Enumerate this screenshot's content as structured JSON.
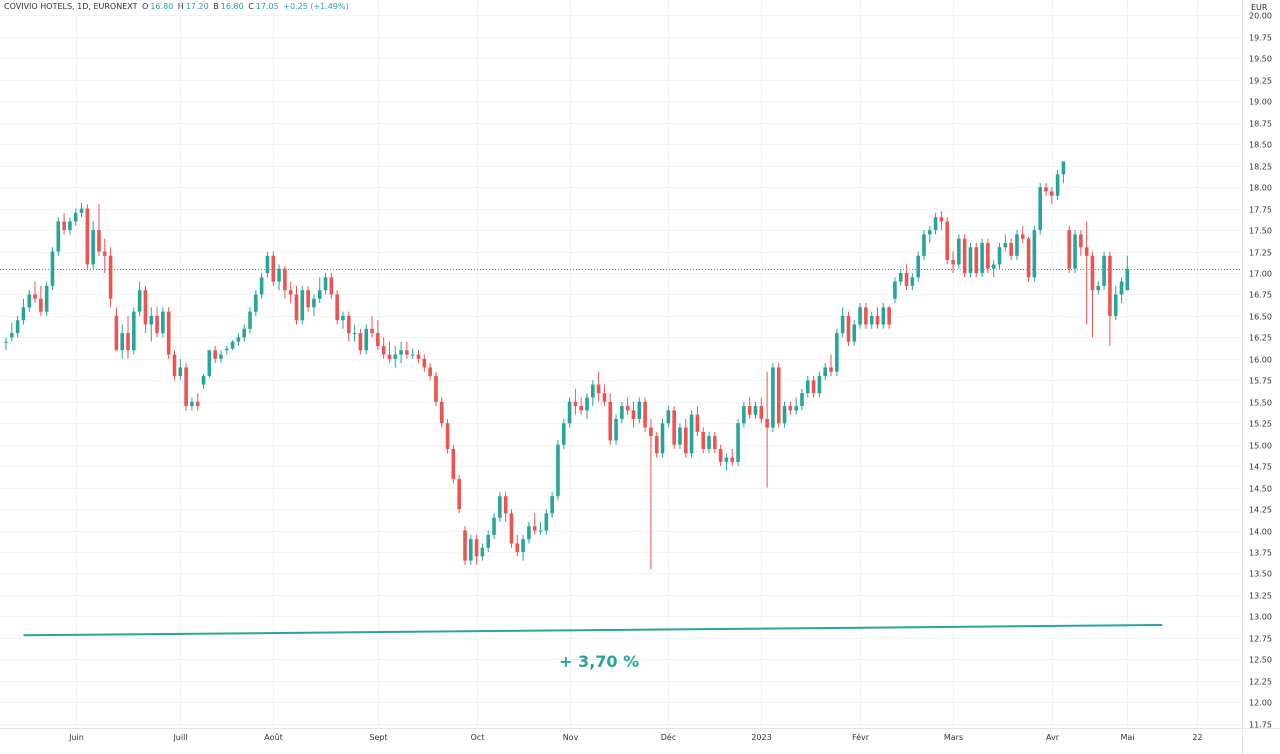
{
  "header": {
    "title": "COVIVIO HOTELS, 1D, EURONEXT",
    "o_label": "O",
    "o_value": "16.80",
    "h_label": "H",
    "h_value": "17.20",
    "b_label": "B",
    "b_value": "16.80",
    "c_label": "C",
    "c_value": "17.05",
    "change": "+0.25 (+1.49%)"
  },
  "colors": {
    "up": "#26a69a",
    "down": "#ef5350",
    "grid": "#f0f3fa",
    "line": "#26a69a"
  },
  "chart_data": {
    "type": "candlestick",
    "currency": "EUR",
    "ylim": [
      11.7,
      20.18
    ],
    "y_ticks": [
      "20.00",
      "19.75",
      "19.50",
      "19.25",
      "19.00",
      "18.75",
      "18.50",
      "18.25",
      "18.00",
      "17.75",
      "17.50",
      "17.25",
      "17.00",
      "16.75",
      "16.50",
      "16.25",
      "16.00",
      "15.75",
      "15.50",
      "15.25",
      "15.00",
      "14.75",
      "14.50",
      "14.25",
      "14.00",
      "13.75",
      "13.50",
      "13.25",
      "13.00",
      "12.75",
      "12.50",
      "12.25",
      "12.00",
      "11.75"
    ],
    "x_labels": [
      {
        "label": "Juin",
        "i": 12
      },
      {
        "label": "Juill",
        "i": 30
      },
      {
        "label": "Août",
        "i": 46
      },
      {
        "label": "Sept",
        "i": 64
      },
      {
        "label": "Oct",
        "i": 81
      },
      {
        "label": "Nov",
        "i": 97
      },
      {
        "label": "Déc",
        "i": 114
      },
      {
        "label": "2023",
        "i": 130
      },
      {
        "label": "Févr",
        "i": 147
      },
      {
        "label": "Mars",
        "i": 163
      },
      {
        "label": "Avr",
        "i": 180
      },
      {
        "label": "Mai",
        "i": 193
      },
      {
        "label": "22",
        "i": 205
      }
    ],
    "last_close": 17.05,
    "candles": [
      [
        16.2,
        16.25,
        16.1,
        16.2
      ],
      [
        16.25,
        16.42,
        16.2,
        16.3
      ],
      [
        16.3,
        16.5,
        16.25,
        16.45
      ],
      [
        16.45,
        16.7,
        16.4,
        16.6
      ],
      [
        16.6,
        16.8,
        16.55,
        16.75
      ],
      [
        16.75,
        16.9,
        16.65,
        16.7
      ],
      [
        16.7,
        16.85,
        16.5,
        16.55
      ],
      [
        16.55,
        16.9,
        16.5,
        16.85
      ],
      [
        16.85,
        17.3,
        16.8,
        17.25
      ],
      [
        17.25,
        17.65,
        17.2,
        17.6
      ],
      [
        17.6,
        17.7,
        17.45,
        17.5
      ],
      [
        17.5,
        17.65,
        17.45,
        17.6
      ],
      [
        17.6,
        17.75,
        17.55,
        17.7
      ],
      [
        17.7,
        17.82,
        17.65,
        17.75
      ],
      [
        17.75,
        17.8,
        17.05,
        17.1
      ],
      [
        17.1,
        17.6,
        17.05,
        17.5
      ],
      [
        17.5,
        17.8,
        17.2,
        17.25
      ],
      [
        17.25,
        17.4,
        17.0,
        17.2
      ],
      [
        17.2,
        17.3,
        16.6,
        16.7
      ],
      [
        16.5,
        16.6,
        16.1,
        16.1
      ],
      [
        16.1,
        16.4,
        16.0,
        16.3
      ],
      [
        16.3,
        16.5,
        16.0,
        16.1
      ],
      [
        16.1,
        16.6,
        16.05,
        16.55
      ],
      [
        16.55,
        16.9,
        16.5,
        16.8
      ],
      [
        16.8,
        16.85,
        16.3,
        16.4
      ],
      [
        16.4,
        16.6,
        16.2,
        16.5
      ],
      [
        16.5,
        16.6,
        16.25,
        16.3
      ],
      [
        16.3,
        16.6,
        16.25,
        16.55
      ],
      [
        16.55,
        16.6,
        16.0,
        16.05
      ],
      [
        16.05,
        16.1,
        15.75,
        15.8
      ],
      [
        15.8,
        16.0,
        15.75,
        15.9
      ],
      [
        15.9,
        15.95,
        15.4,
        15.45
      ],
      [
        15.45,
        15.55,
        15.4,
        15.5
      ],
      [
        15.5,
        15.6,
        15.4,
        15.45
      ],
      [
        15.7,
        15.82,
        15.65,
        15.8
      ],
      [
        15.8,
        16.1,
        15.78,
        16.1
      ],
      [
        16.1,
        16.15,
        15.95,
        16.0
      ],
      [
        16.0,
        16.1,
        15.95,
        16.05
      ],
      [
        16.1,
        16.15,
        16.05,
        16.12
      ],
      [
        16.12,
        16.22,
        16.1,
        16.2
      ],
      [
        16.2,
        16.3,
        16.15,
        16.25
      ],
      [
        16.25,
        16.4,
        16.2,
        16.35
      ],
      [
        16.35,
        16.6,
        16.3,
        16.55
      ],
      [
        16.55,
        16.8,
        16.5,
        16.75
      ],
      [
        16.75,
        17.0,
        16.7,
        16.95
      ],
      [
        17.0,
        17.25,
        16.95,
        17.2
      ],
      [
        17.2,
        17.25,
        16.85,
        16.9
      ],
      [
        16.9,
        17.1,
        16.8,
        17.05
      ],
      [
        17.05,
        17.08,
        16.7,
        16.8
      ],
      [
        16.8,
        16.9,
        16.65,
        16.75
      ],
      [
        16.75,
        16.85,
        16.4,
        16.45
      ],
      [
        16.45,
        16.85,
        16.4,
        16.8
      ],
      [
        16.8,
        16.85,
        16.55,
        16.6
      ],
      [
        16.6,
        16.75,
        16.5,
        16.7
      ],
      [
        16.7,
        16.95,
        16.65,
        16.8
      ],
      [
        16.8,
        17.0,
        16.75,
        16.95
      ],
      [
        16.95,
        17.0,
        16.7,
        16.75
      ],
      [
        16.75,
        16.8,
        16.4,
        16.45
      ],
      [
        16.45,
        16.55,
        16.35,
        16.5
      ],
      [
        16.5,
        16.55,
        16.2,
        16.3
      ],
      [
        16.3,
        16.4,
        16.2,
        16.3
      ],
      [
        16.3,
        16.35,
        16.05,
        16.1
      ],
      [
        16.1,
        16.4,
        16.05,
        16.35
      ],
      [
        16.35,
        16.5,
        16.25,
        16.3
      ],
      [
        16.3,
        16.45,
        16.1,
        16.15
      ],
      [
        16.15,
        16.25,
        16.0,
        16.05
      ],
      [
        16.05,
        16.2,
        15.95,
        16.0
      ],
      [
        16.0,
        16.15,
        15.9,
        16.05
      ],
      [
        16.05,
        16.2,
        15.95,
        16.1
      ],
      [
        16.1,
        16.2,
        16.0,
        16.05
      ],
      [
        16.05,
        16.12,
        16.0,
        16.05
      ],
      [
        16.05,
        16.1,
        15.95,
        16.0
      ],
      [
        16.0,
        16.05,
        15.85,
        15.9
      ],
      [
        15.9,
        15.95,
        15.75,
        15.8
      ],
      [
        15.8,
        15.85,
        15.45,
        15.5
      ],
      [
        15.5,
        15.55,
        15.2,
        15.25
      ],
      [
        15.25,
        15.3,
        14.9,
        14.95
      ],
      [
        14.95,
        15.0,
        14.55,
        14.6
      ],
      [
        14.6,
        14.65,
        14.2,
        14.25
      ],
      [
        14.0,
        14.05,
        13.6,
        13.65
      ],
      [
        13.65,
        13.95,
        13.6,
        13.9
      ],
      [
        13.9,
        13.95,
        13.6,
        13.7
      ],
      [
        13.7,
        13.85,
        13.65,
        13.8
      ],
      [
        13.8,
        14.0,
        13.75,
        13.95
      ],
      [
        13.95,
        14.2,
        13.9,
        14.15
      ],
      [
        14.15,
        14.45,
        14.1,
        14.4
      ],
      [
        14.4,
        14.45,
        14.1,
        14.2
      ],
      [
        14.2,
        14.25,
        13.8,
        13.85
      ],
      [
        13.85,
        13.95,
        13.7,
        13.75
      ],
      [
        13.75,
        13.95,
        13.65,
        13.9
      ],
      [
        13.9,
        14.1,
        13.85,
        14.05
      ],
      [
        14.05,
        14.2,
        13.95,
        14.0
      ],
      [
        14.0,
        14.1,
        13.95,
        14.0
      ],
      [
        14.0,
        14.25,
        13.95,
        14.2
      ],
      [
        14.2,
        14.45,
        14.15,
        14.4
      ],
      [
        14.4,
        15.05,
        14.35,
        15.0
      ],
      [
        15.0,
        15.3,
        14.95,
        15.25
      ],
      [
        15.25,
        15.55,
        15.2,
        15.5
      ],
      [
        15.5,
        15.65,
        15.35,
        15.45
      ],
      [
        15.45,
        15.55,
        15.35,
        15.4
      ],
      [
        15.4,
        15.6,
        15.3,
        15.55
      ],
      [
        15.55,
        15.75,
        15.45,
        15.7
      ],
      [
        15.7,
        15.85,
        15.5,
        15.6
      ],
      [
        15.6,
        15.7,
        15.45,
        15.5
      ],
      [
        15.5,
        15.6,
        15.0,
        15.05
      ],
      [
        15.05,
        15.35,
        15.0,
        15.3
      ],
      [
        15.3,
        15.5,
        15.25,
        15.45
      ],
      [
        15.45,
        15.55,
        15.35,
        15.4
      ],
      [
        15.4,
        15.5,
        15.2,
        15.3
      ],
      [
        15.3,
        15.55,
        15.25,
        15.5
      ],
      [
        15.5,
        15.55,
        15.15,
        15.2
      ],
      [
        15.2,
        15.3,
        13.55,
        15.1
      ],
      [
        15.1,
        15.15,
        14.85,
        14.9
      ],
      [
        14.9,
        15.3,
        14.85,
        15.25
      ],
      [
        15.25,
        15.45,
        15.2,
        15.4
      ],
      [
        15.4,
        15.45,
        14.95,
        15.0
      ],
      [
        15.0,
        15.25,
        14.95,
        15.2
      ],
      [
        15.2,
        15.3,
        14.85,
        14.9
      ],
      [
        14.9,
        15.4,
        14.85,
        15.35
      ],
      [
        15.35,
        15.45,
        15.1,
        15.15
      ],
      [
        15.15,
        15.2,
        14.9,
        14.95
      ],
      [
        14.95,
        15.15,
        14.9,
        15.1
      ],
      [
        15.1,
        15.15,
        14.9,
        14.95
      ],
      [
        14.95,
        15.0,
        14.75,
        14.8
      ],
      [
        14.8,
        14.9,
        14.7,
        14.85
      ],
      [
        14.85,
        14.95,
        14.75,
        14.8
      ],
      [
        14.8,
        15.3,
        14.75,
        15.25
      ],
      [
        15.25,
        15.5,
        15.2,
        15.45
      ],
      [
        15.45,
        15.55,
        15.3,
        15.35
      ],
      [
        15.35,
        15.5,
        15.3,
        15.45
      ],
      [
        15.45,
        15.55,
        15.25,
        15.3
      ],
      [
        15.3,
        15.85,
        14.5,
        15.2
      ],
      [
        15.2,
        15.95,
        15.15,
        15.9
      ],
      [
        15.9,
        15.95,
        15.2,
        15.25
      ],
      [
        15.25,
        15.5,
        15.2,
        15.45
      ],
      [
        15.45,
        15.5,
        15.35,
        15.4
      ],
      [
        15.4,
        15.55,
        15.35,
        15.45
      ],
      [
        15.45,
        15.65,
        15.4,
        15.6
      ],
      [
        15.6,
        15.8,
        15.55,
        15.75
      ],
      [
        15.75,
        15.8,
        15.55,
        15.6
      ],
      [
        15.6,
        15.85,
        15.55,
        15.8
      ],
      [
        15.8,
        15.95,
        15.75,
        15.9
      ],
      [
        15.9,
        16.05,
        15.8,
        15.85
      ],
      [
        15.85,
        16.35,
        15.8,
        16.3
      ],
      [
        16.3,
        16.6,
        16.25,
        16.5
      ],
      [
        16.5,
        16.55,
        16.15,
        16.2
      ],
      [
        16.2,
        16.45,
        16.15,
        16.4
      ],
      [
        16.4,
        16.65,
        16.35,
        16.6
      ],
      [
        16.6,
        16.65,
        16.35,
        16.4
      ],
      [
        16.4,
        16.55,
        16.35,
        16.5
      ],
      [
        16.5,
        16.6,
        16.35,
        16.4
      ],
      [
        16.4,
        16.65,
        16.35,
        16.6
      ],
      [
        16.6,
        16.62,
        16.35,
        16.4
      ],
      [
        16.7,
        16.95,
        16.65,
        16.9
      ],
      [
        16.9,
        17.05,
        16.85,
        17.0
      ],
      [
        17.0,
        17.1,
        16.8,
        16.85
      ],
      [
        16.85,
        17.0,
        16.8,
        16.95
      ],
      [
        16.95,
        17.25,
        16.9,
        17.2
      ],
      [
        17.2,
        17.5,
        17.15,
        17.45
      ],
      [
        17.45,
        17.55,
        17.35,
        17.5
      ],
      [
        17.5,
        17.7,
        17.45,
        17.65
      ],
      [
        17.65,
        17.72,
        17.5,
        17.6
      ],
      [
        17.6,
        17.65,
        17.1,
        17.15
      ],
      [
        17.15,
        17.25,
        17.0,
        17.1
      ],
      [
        17.1,
        17.45,
        17.05,
        17.4
      ],
      [
        17.4,
        17.45,
        16.95,
        17.0
      ],
      [
        17.0,
        17.35,
        16.95,
        17.3
      ],
      [
        17.3,
        17.35,
        16.95,
        17.0
      ],
      [
        17.0,
        17.4,
        16.95,
        17.35
      ],
      [
        17.35,
        17.4,
        17.0,
        17.05
      ],
      [
        17.05,
        17.15,
        16.95,
        17.1
      ],
      [
        17.1,
        17.35,
        17.05,
        17.3
      ],
      [
        17.3,
        17.45,
        17.25,
        17.35
      ],
      [
        17.35,
        17.4,
        17.15,
        17.2
      ],
      [
        17.2,
        17.5,
        17.15,
        17.45
      ],
      [
        17.45,
        17.55,
        17.35,
        17.4
      ],
      [
        17.4,
        17.42,
        16.9,
        16.95
      ],
      [
        16.95,
        17.55,
        16.9,
        17.5
      ],
      [
        17.5,
        18.05,
        17.45,
        18.0
      ],
      [
        18.0,
        18.05,
        17.9,
        17.95
      ],
      [
        17.95,
        18.0,
        17.8,
        17.9
      ],
      [
        17.9,
        18.2,
        17.85,
        18.15
      ],
      [
        18.15,
        18.3,
        18.05,
        18.3
      ],
      [
        17.5,
        17.55,
        17.0,
        17.05
      ],
      [
        17.05,
        17.5,
        17.0,
        17.45
      ],
      [
        17.45,
        17.5,
        17.2,
        17.3
      ],
      [
        17.3,
        17.6,
        16.4,
        17.2
      ],
      [
        17.2,
        17.25,
        16.25,
        16.8
      ],
      [
        16.8,
        16.9,
        16.75,
        16.85
      ],
      [
        16.85,
        17.25,
        16.8,
        17.2
      ],
      [
        17.2,
        17.25,
        16.15,
        16.5
      ],
      [
        16.5,
        16.85,
        16.45,
        16.75
      ],
      [
        16.75,
        16.95,
        16.65,
        16.9
      ],
      [
        16.8,
        17.2,
        16.8,
        17.05
      ]
    ],
    "trend_line": {
      "from": [
        3,
        12.78
      ],
      "to": [
        199,
        12.9
      ]
    },
    "annotation": "+ 3,70 %"
  }
}
